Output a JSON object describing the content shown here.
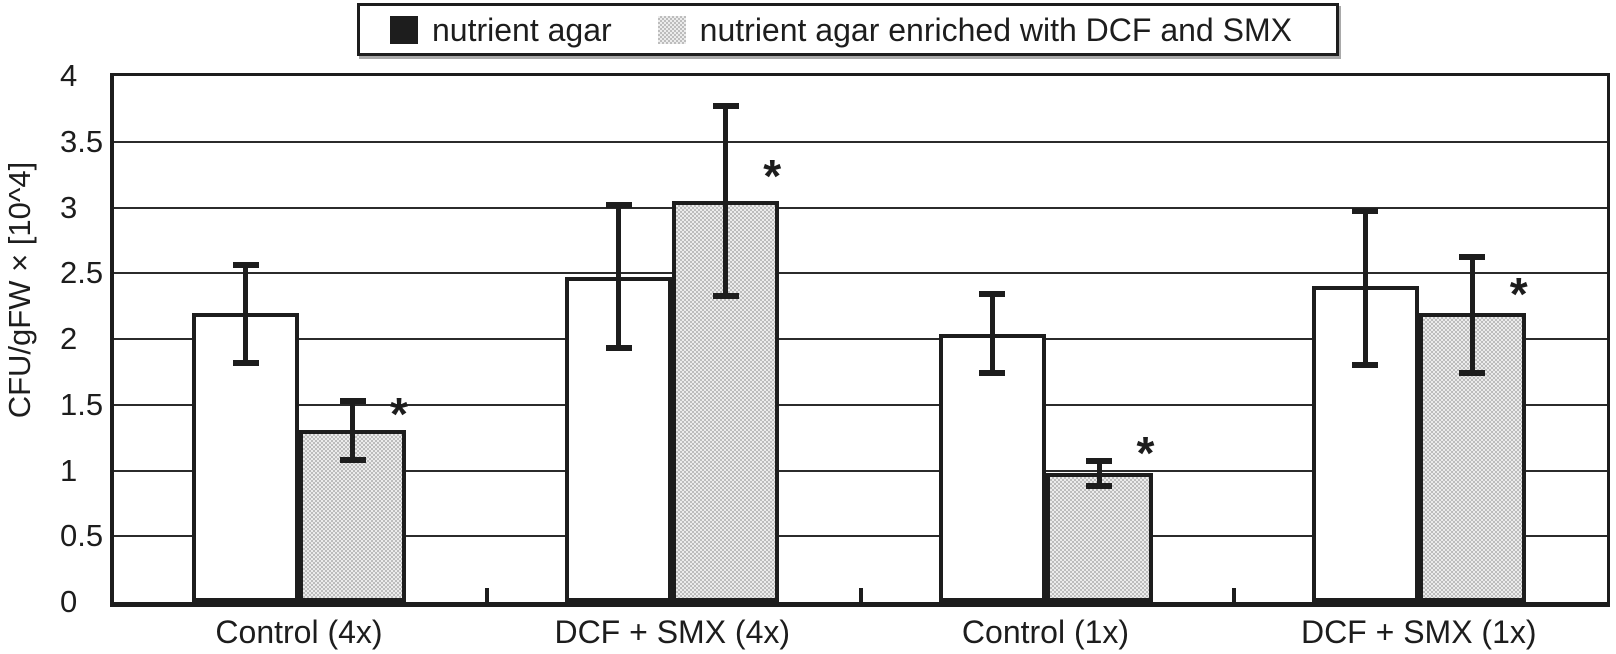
{
  "legend": {
    "entries": [
      {
        "label": "nutrient agar",
        "swatch": "solid-black"
      },
      {
        "label": "nutrient agar enriched with DCF and SMX",
        "swatch": "dotted-gray"
      }
    ]
  },
  "chart_data": {
    "type": "bar",
    "title": "",
    "xlabel": "",
    "ylabel": "CFU/gFW × [10^4]",
    "ylim": [
      0,
      4
    ],
    "grid": true,
    "legend_position": "top",
    "yticks": [
      {
        "value": 0,
        "label": "0"
      },
      {
        "value": 0.5,
        "label": "0.5"
      },
      {
        "value": 1,
        "label": "1"
      },
      {
        "value": 1.5,
        "label": "1.5"
      },
      {
        "value": 2,
        "label": "2"
      },
      {
        "value": 2.5,
        "label": "2.5"
      },
      {
        "value": 3,
        "label": "3"
      },
      {
        "value": 3.5,
        "label": "3.5"
      },
      {
        "value": 4,
        "label": "4"
      }
    ],
    "categories": [
      "Control (4x)",
      "DCF + SMX (4x)",
      "Control (1x)",
      "DCF + SMX (1x)"
    ],
    "series": [
      {
        "name": "nutrient agar",
        "style": "solid-white",
        "values": [
          2.2,
          2.47,
          2.04,
          2.4
        ],
        "err_lo": [
          1.82,
          1.93,
          1.74,
          1.8
        ],
        "err_hi": [
          2.56,
          3.02,
          2.34,
          2.97
        ]
      },
      {
        "name": "nutrient agar enriched with DCF and SMX",
        "style": "dotted-gray",
        "values": [
          1.31,
          3.05,
          0.98,
          2.2
        ],
        "err_lo": [
          1.08,
          2.33,
          0.88,
          1.74
        ],
        "err_hi": [
          1.53,
          3.77,
          1.07,
          2.62
        ],
        "significance": [
          {
            "text": "*",
            "y": 1.47
          },
          {
            "text": "*",
            "y": 3.28
          },
          {
            "text": "*",
            "y": 1.17
          },
          {
            "text": "*",
            "y": 2.38
          }
        ]
      }
    ],
    "colors": {
      "ink": "#1d1d1d",
      "pattern_dark": "#bdbdbd",
      "pattern_light": "#ececec"
    }
  }
}
